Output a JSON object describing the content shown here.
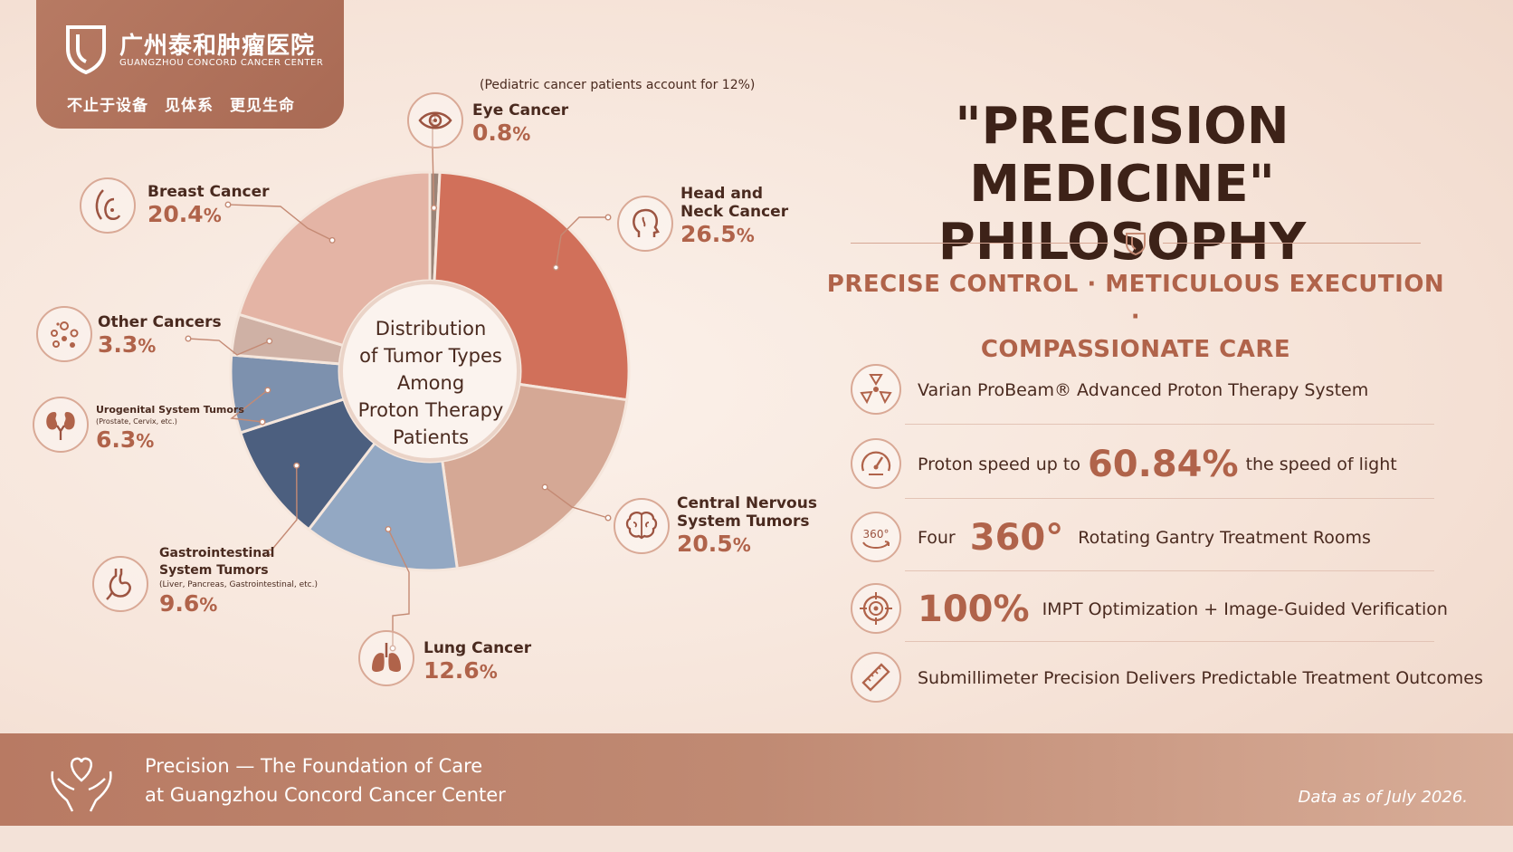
{
  "logo": {
    "name_cn": "广州泰和肿瘤医院",
    "name_en": "GUANGZHOU CONCORD CANCER CENTER",
    "slogan": "不止于设备　见体系　更见生命"
  },
  "chart_data": {
    "type": "pie",
    "title": "Distribution of Tumor Types Among Proton Therapy Patients",
    "title_lines": [
      "Distribution",
      "of Tumor Types",
      "Among",
      "Proton Therapy",
      "Patients"
    ],
    "note": "(Pediatric cancer patients account for 12%)",
    "unit": "%",
    "slices": [
      {
        "label": "Eye Cancer",
        "value": 0.8,
        "display": "0.8",
        "color": "#9b8478"
      },
      {
        "label": "Head and Neck Cancer",
        "lines": [
          "Head and",
          "Neck Cancer"
        ],
        "value": 26.5,
        "display": "26.5",
        "color": "#d1705a"
      },
      {
        "label": "Central Nervous System Tumors",
        "lines": [
          "Central Nervous",
          "System Tumors"
        ],
        "value": 20.5,
        "display": "20.5",
        "color": "#d5a895"
      },
      {
        "label": "Lung Cancer",
        "value": 12.6,
        "display": "12.6",
        "color": "#93a8c3"
      },
      {
        "label": "Gastrointestinal System Tumors",
        "lines": [
          "Gastrointestinal",
          "System Tumors"
        ],
        "sub": "(Liver, Pancreas, Gastrointestinal, etc.)",
        "value": 9.6,
        "display": "9.6",
        "color": "#4c5f7f"
      },
      {
        "label": "Urogenital System Tumors",
        "sub": "(Prostate, Cervix, etc.)",
        "value": 6.3,
        "display": "6.3",
        "color": "#7d91ae"
      },
      {
        "label": "Other Cancers",
        "value": 3.3,
        "display": "3.3",
        "color": "#cfb1a5"
      },
      {
        "label": "Breast Cancer",
        "value": 20.4,
        "display": "20.4",
        "color": "#e4b4a5"
      }
    ]
  },
  "right": {
    "heading_lines": [
      "\"PRECISION MEDICINE\"",
      "PHILOSOPHY"
    ],
    "tagline_lines": [
      "PRECISE CONTROL · METICULOUS EXECUTION ·",
      "COMPASSIONATE CARE"
    ],
    "features": [
      {
        "icon": "proton-beam-icon",
        "pre": "Varian ProBeam® Advanced Proton Therapy System",
        "big": "",
        "post": ""
      },
      {
        "icon": "speedometer-icon",
        "pre": "Proton speed up to",
        "big": "60.84%",
        "post": "the speed of light"
      },
      {
        "icon": "rotation-360-icon",
        "icon_text": "360°",
        "pre": "Four",
        "big": "360°",
        "post": "Rotating Gantry Treatment Rooms"
      },
      {
        "icon": "target-icon",
        "pre": "",
        "big": "100%",
        "post": "IMPT Optimization + Image-Guided Verification"
      },
      {
        "icon": "ruler-icon",
        "pre": "Submillimeter Precision Delivers Predictable Treatment Outcomes",
        "big": "",
        "post": ""
      }
    ]
  },
  "footer": {
    "line1": "Precision — The Foundation of Care",
    "line2": "at Guangzhou Concord Cancer Center",
    "date": "Data as of July 2026."
  }
}
